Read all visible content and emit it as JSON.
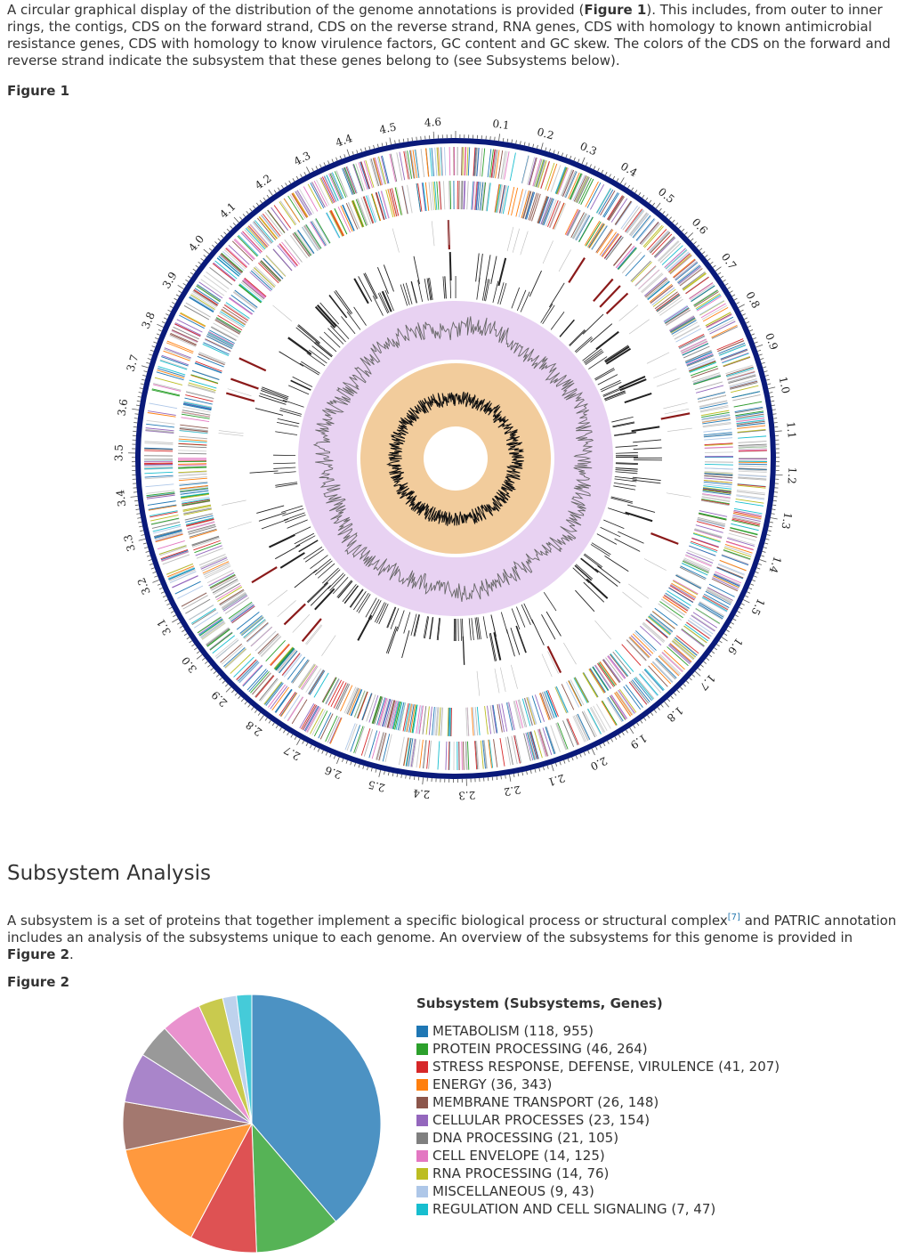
{
  "intro": {
    "part1": "A circular graphical display of the distribution of the genome annotations is provided (",
    "fig_ref": "Figure 1",
    "part2": "). This includes, from outer to inner rings, the contigs, CDS on the forward strand, CDS on the reverse strand, RNA genes, CDS with homology to known antimicrobial resistance genes, CDS with homology to know virulence factors, GC content and GC skew. The colors of the CDS on the forward and reverse strand indicate the subsystem that these genes belong to (see Subsystems below)."
  },
  "figure1": {
    "label": "Figure 1",
    "tick_labels": [
      "0.1",
      "0.2",
      "0.3",
      "0.4",
      "0.5",
      "0.6",
      "0.7",
      "0.8",
      "0.9",
      "1.0",
      "1.1",
      "1.2",
      "1.3",
      "1.4",
      "1.5",
      "1.6",
      "1.7",
      "1.8",
      "1.9",
      "2.0",
      "2.1",
      "2.2",
      "2.3",
      "2.4",
      "2.5",
      "2.6",
      "2.7",
      "2.8",
      "2.9",
      "3.0",
      "3.1",
      "3.2",
      "3.3",
      "3.4",
      "3.5",
      "3.6",
      "3.7",
      "3.8",
      "3.9",
      "4.0",
      "4.1",
      "4.2",
      "4.3",
      "4.4",
      "4.5",
      "4.6"
    ],
    "genome_size_mb": 4.65,
    "colors": {
      "contig_ring": "#0a1a7a",
      "gc_content_band": "#e8d2f2",
      "gc_skew_band": "#f2cc9c",
      "rna": "#8b1a1a",
      "track_line": "#222222"
    }
  },
  "subsystem": {
    "heading": "Subsystem Analysis",
    "para1": "A subsystem is a set of proteins that together implement a specific biological process or structural complex",
    "ref": "[7]",
    "para2": " and PATRIC annotation includes an analysis of the subsystems unique to each genome. An overview of the subsystems for this genome is provided in ",
    "fig_ref": "Figure 2",
    "para_end": "."
  },
  "figure2": {
    "label": "Figure 2",
    "legend_title": "Subsystem (Subsystems, Genes)"
  },
  "chart_data": {
    "type": "pie",
    "title": "Subsystem (Subsystems, Genes)",
    "slice_value": "genes",
    "series": [
      {
        "name": "METABOLISM (118, 955)",
        "subsystems": 118,
        "genes": 955,
        "color": "#1f77b4"
      },
      {
        "name": "PROTEIN PROCESSING (46, 264)",
        "subsystems": 46,
        "genes": 264,
        "color": "#2ca02c"
      },
      {
        "name": "STRESS RESPONSE, DEFENSE, VIRULENCE (41, 207)",
        "subsystems": 41,
        "genes": 207,
        "color": "#d62728"
      },
      {
        "name": "ENERGY (36, 343)",
        "subsystems": 36,
        "genes": 343,
        "color": "#ff7f0e"
      },
      {
        "name": "MEMBRANE TRANSPORT (26, 148)",
        "subsystems": 26,
        "genes": 148,
        "color": "#8c564b"
      },
      {
        "name": "CELLULAR PROCESSES (23, 154)",
        "subsystems": 23,
        "genes": 154,
        "color": "#9467bd"
      },
      {
        "name": "DNA PROCESSING (21, 105)",
        "subsystems": 21,
        "genes": 105,
        "color": "#7f7f7f"
      },
      {
        "name": "CELL ENVELOPE (14, 125)",
        "subsystems": 14,
        "genes": 125,
        "color": "#e377c2"
      },
      {
        "name": "RNA PROCESSING (14, 76)",
        "subsystems": 14,
        "genes": 76,
        "color": "#bcbd22"
      },
      {
        "name": "MISCELLANEOUS (9, 43)",
        "subsystems": 9,
        "genes": 43,
        "color": "#aec7e8"
      },
      {
        "name": "REGULATION AND CELL SIGNALING (7, 47)",
        "subsystems": 7,
        "genes": 47,
        "color": "#17becf"
      }
    ],
    "legend_placement": "right"
  }
}
